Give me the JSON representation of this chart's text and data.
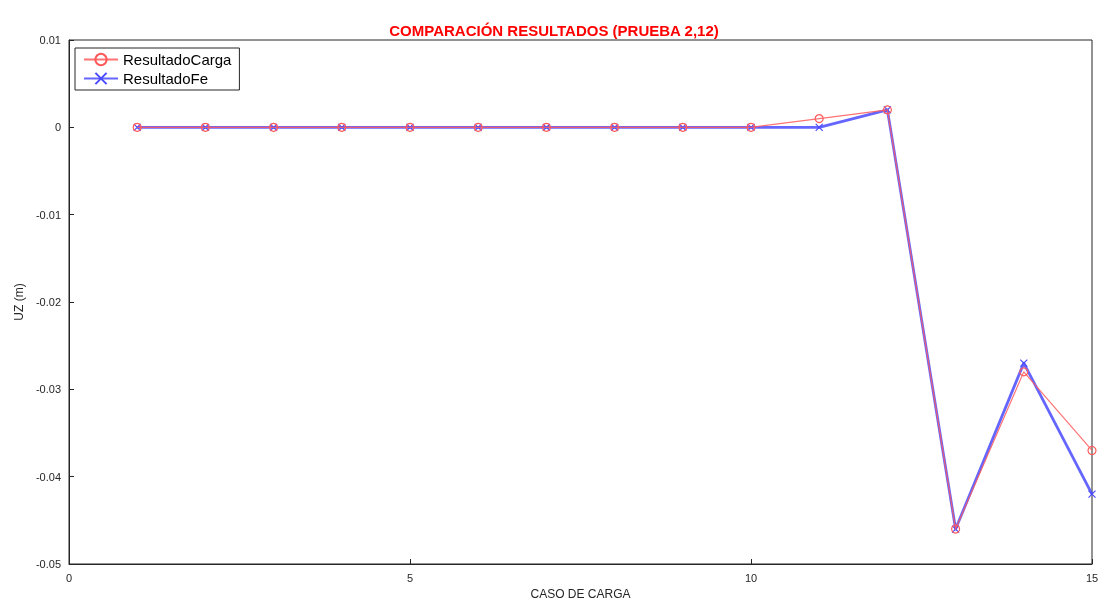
{
  "chart_data": {
    "type": "line",
    "title": "COMPARACIÓN RESULTADOS (PRUEBA 2,12)",
    "xlabel": "CASO DE CARGA",
    "ylabel": "UZ (m)",
    "x": [
      1,
      2,
      3,
      4,
      5,
      6,
      7,
      8,
      9,
      10,
      11,
      12,
      13,
      14,
      15
    ],
    "series": [
      {
        "name": "ResultadoCarga",
        "color": "#ff5a5a",
        "marker": "circle",
        "values": [
          0,
          0,
          0,
          0,
          0,
          0,
          0,
          0,
          0,
          0,
          0.001,
          0.002,
          -0.046,
          -0.028,
          -0.037
        ]
      },
      {
        "name": "ResultadoFe",
        "color": "#4a4aff",
        "marker": "cross",
        "values": [
          0,
          0,
          0,
          0,
          0,
          0,
          0,
          0,
          0,
          0,
          0,
          0.002,
          -0.046,
          -0.027,
          -0.042
        ]
      }
    ],
    "xlim": [
      0,
      15
    ],
    "xticks": [
      0,
      5,
      10,
      15
    ],
    "ylim": [
      -0.05,
      0.01
    ],
    "yticks": [
      -0.05,
      -0.04,
      -0.03,
      -0.02,
      -0.01,
      0,
      0.01
    ],
    "grid": false,
    "legend": "top left",
    "line_style": "solid"
  }
}
